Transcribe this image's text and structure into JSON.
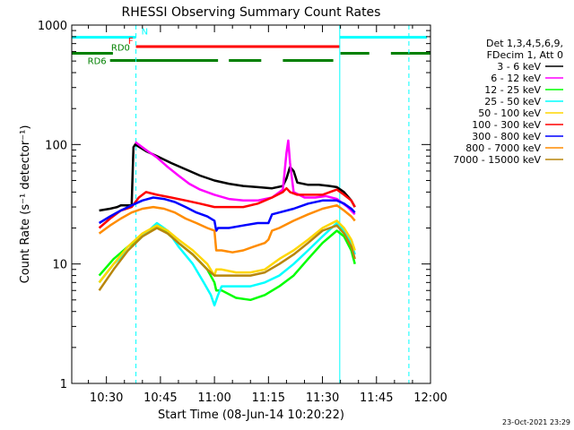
{
  "chart_data": {
    "type": "line",
    "title": "RHESSI Observing Summary Count Rates",
    "xlabel": "Start Time (08-Jun-14 10:20:22)",
    "ylabel": "Count Rate (s⁻¹ detector⁻¹)",
    "xlim_min": [
      20.37,
      120
    ],
    "ylim": [
      1,
      1000
    ],
    "yscale": "log",
    "x_ticks": [
      {
        "m": 30,
        "label": "10:30"
      },
      {
        "m": 45,
        "label": "10:45"
      },
      {
        "m": 60,
        "label": "11:00"
      },
      {
        "m": 75,
        "label": "11:15"
      },
      {
        "m": 90,
        "label": "11:30"
      },
      {
        "m": 105,
        "label": "11:45"
      },
      {
        "m": 120,
        "label": "12:00"
      }
    ],
    "y_ticks": [
      {
        "v": 1,
        "label": "1"
      },
      {
        "v": 10,
        "label": "10"
      },
      {
        "v": 100,
        "label": "100"
      },
      {
        "v": 1000,
        "label": "1000"
      }
    ],
    "legend": {
      "position": "top-right",
      "header": [
        "Det 1,3,4,5,6,9,",
        "FDecim 1, Att 0"
      ]
    },
    "series": [
      {
        "name": "3 - 6 keV",
        "color": "#000000",
        "points": [
          [
            28,
            28
          ],
          [
            31,
            29
          ],
          [
            33,
            30
          ],
          [
            34,
            31
          ],
          [
            37,
            31
          ],
          [
            37.5,
            95
          ],
          [
            38,
            100
          ],
          [
            41,
            88
          ],
          [
            44,
            80
          ],
          [
            48,
            70
          ],
          [
            52,
            62
          ],
          [
            56,
            55
          ],
          [
            60,
            50
          ],
          [
            64,
            47
          ],
          [
            68,
            45
          ],
          [
            72,
            44
          ],
          [
            76,
            43
          ],
          [
            79,
            45
          ],
          [
            80,
            52
          ],
          [
            81,
            65
          ],
          [
            82,
            60
          ],
          [
            83,
            48
          ],
          [
            86,
            46
          ],
          [
            89,
            46
          ],
          [
            92,
            45
          ],
          [
            94,
            44
          ],
          [
            96,
            40
          ],
          [
            98,
            34
          ],
          [
            99,
            30
          ]
        ]
      },
      {
        "name": "6 - 12 keV",
        "color": "#ff00ff",
        "points": [
          [
            38,
            105
          ],
          [
            41,
            90
          ],
          [
            44,
            78
          ],
          [
            47,
            65
          ],
          [
            50,
            55
          ],
          [
            53,
            47
          ],
          [
            56,
            42
          ],
          [
            60,
            38
          ],
          [
            64,
            35
          ],
          [
            68,
            34
          ],
          [
            72,
            34
          ],
          [
            76,
            36
          ],
          [
            79,
            42
          ],
          [
            80,
            85
          ],
          [
            80.5,
            108
          ],
          [
            81,
            70
          ],
          [
            82,
            40
          ],
          [
            85,
            36
          ],
          [
            88,
            36
          ],
          [
            91,
            37
          ],
          [
            94,
            35
          ],
          [
            97,
            30
          ],
          [
            99,
            26
          ]
        ]
      },
      {
        "name": "12 - 25 keV",
        "color": "#00ff00",
        "points": [
          [
            28,
            8
          ],
          [
            32,
            11
          ],
          [
            36,
            14
          ],
          [
            40,
            17
          ],
          [
            44,
            21
          ],
          [
            47,
            18
          ],
          [
            50,
            15
          ],
          [
            54,
            12
          ],
          [
            58,
            9
          ],
          [
            60,
            7
          ],
          [
            60.5,
            6
          ],
          [
            62,
            6
          ],
          [
            66,
            5.2
          ],
          [
            70,
            5
          ],
          [
            74,
            5.5
          ],
          [
            78,
            6.5
          ],
          [
            82,
            8
          ],
          [
            86,
            11
          ],
          [
            90,
            15
          ],
          [
            94,
            19
          ],
          [
            96,
            17
          ],
          [
            98,
            13
          ],
          [
            99,
            10
          ]
        ]
      },
      {
        "name": "25 - 50 keV",
        "color": "#00ffff",
        "points": [
          [
            28,
            7
          ],
          [
            32,
            10
          ],
          [
            36,
            13
          ],
          [
            40,
            17
          ],
          [
            44,
            22
          ],
          [
            47,
            19
          ],
          [
            50,
            14
          ],
          [
            54,
            10
          ],
          [
            57,
            7
          ],
          [
            59,
            5.5
          ],
          [
            60,
            4.5
          ],
          [
            61,
            5.5
          ],
          [
            62,
            6.5
          ],
          [
            66,
            6.5
          ],
          [
            70,
            6.5
          ],
          [
            74,
            7
          ],
          [
            78,
            8
          ],
          [
            82,
            10
          ],
          [
            86,
            13
          ],
          [
            90,
            17
          ],
          [
            94,
            22
          ],
          [
            96,
            19
          ],
          [
            98,
            15
          ],
          [
            99,
            12
          ]
        ]
      },
      {
        "name": "50 - 100 keV",
        "color": "#ffd700",
        "points": [
          [
            28,
            7
          ],
          [
            32,
            10
          ],
          [
            36,
            14
          ],
          [
            40,
            18
          ],
          [
            44,
            21
          ],
          [
            47,
            19
          ],
          [
            50,
            16
          ],
          [
            54,
            13
          ],
          [
            58,
            10
          ],
          [
            60,
            8
          ],
          [
            60.5,
            9
          ],
          [
            62,
            9
          ],
          [
            66,
            8.5
          ],
          [
            70,
            8.5
          ],
          [
            74,
            9
          ],
          [
            78,
            11
          ],
          [
            82,
            13
          ],
          [
            86,
            16
          ],
          [
            90,
            20
          ],
          [
            94,
            23
          ],
          [
            96,
            20
          ],
          [
            98,
            16
          ],
          [
            99,
            13
          ]
        ]
      },
      {
        "name": "100 - 300 keV",
        "color": "#ff0000",
        "points": [
          [
            28,
            20
          ],
          [
            31,
            24
          ],
          [
            34,
            28
          ],
          [
            37,
            30
          ],
          [
            39,
            36
          ],
          [
            41,
            40
          ],
          [
            44,
            38
          ],
          [
            48,
            36
          ],
          [
            52,
            34
          ],
          [
            56,
            32
          ],
          [
            60,
            30
          ],
          [
            64,
            30
          ],
          [
            68,
            30
          ],
          [
            72,
            32
          ],
          [
            76,
            36
          ],
          [
            79,
            40
          ],
          [
            80,
            43
          ],
          [
            81,
            40
          ],
          [
            83,
            38
          ],
          [
            86,
            38
          ],
          [
            90,
            38
          ],
          [
            94,
            42
          ],
          [
            96,
            38
          ],
          [
            98,
            34
          ],
          [
            99,
            30
          ]
        ]
      },
      {
        "name": "300 - 800 keV",
        "color": "#0000ff",
        "points": [
          [
            28,
            22
          ],
          [
            31,
            25
          ],
          [
            34,
            28
          ],
          [
            37,
            31
          ],
          [
            40,
            34
          ],
          [
            43,
            36
          ],
          [
            46,
            35
          ],
          [
            49,
            33
          ],
          [
            52,
            30
          ],
          [
            55,
            27
          ],
          [
            58,
            25
          ],
          [
            60,
            23
          ],
          [
            60.5,
            19
          ],
          [
            61,
            20
          ],
          [
            64,
            20
          ],
          [
            68,
            21
          ],
          [
            72,
            22
          ],
          [
            75,
            22
          ],
          [
            76,
            26
          ],
          [
            78,
            27
          ],
          [
            82,
            29
          ],
          [
            86,
            32
          ],
          [
            90,
            34
          ],
          [
            94,
            34
          ],
          [
            96,
            32
          ],
          [
            98,
            29
          ],
          [
            99,
            27
          ]
        ]
      },
      {
        "name": "800 - 7000 keV",
        "color": "#ff8c00",
        "points": [
          [
            28,
            18
          ],
          [
            31,
            21
          ],
          [
            34,
            24
          ],
          [
            37,
            27
          ],
          [
            40,
            29
          ],
          [
            43,
            30
          ],
          [
            46,
            29
          ],
          [
            49,
            27
          ],
          [
            52,
            24
          ],
          [
            55,
            22
          ],
          [
            58,
            20
          ],
          [
            60,
            19
          ],
          [
            60.5,
            13
          ],
          [
            62,
            13
          ],
          [
            65,
            12.5
          ],
          [
            68,
            13
          ],
          [
            71,
            14
          ],
          [
            74,
            15
          ],
          [
            75,
            16
          ],
          [
            76,
            19
          ],
          [
            78,
            20
          ],
          [
            82,
            23
          ],
          [
            86,
            26
          ],
          [
            90,
            29
          ],
          [
            94,
            31
          ],
          [
            96,
            28
          ],
          [
            98,
            25
          ],
          [
            99,
            23
          ]
        ]
      },
      {
        "name": "7000 - 15000 keV",
        "color": "#b8860b",
        "points": [
          [
            28,
            6
          ],
          [
            32,
            9
          ],
          [
            36,
            13
          ],
          [
            40,
            17
          ],
          [
            44,
            20
          ],
          [
            47,
            18
          ],
          [
            50,
            15
          ],
          [
            54,
            12
          ],
          [
            58,
            9
          ],
          [
            60,
            8
          ],
          [
            62,
            8
          ],
          [
            66,
            8
          ],
          [
            70,
            8
          ],
          [
            74,
            8.5
          ],
          [
            78,
            10
          ],
          [
            82,
            12
          ],
          [
            86,
            15
          ],
          [
            90,
            19
          ],
          [
            94,
            21
          ],
          [
            96,
            18
          ],
          [
            98,
            14
          ],
          [
            99,
            11
          ]
        ]
      }
    ],
    "flags": [
      {
        "label": "N",
        "color": "#00ffff",
        "value": 790,
        "segments": [
          [
            20.37,
            38.2
          ],
          [
            94.8,
            119
          ]
        ]
      },
      {
        "label": "F",
        "color": "#ff0000",
        "value": 660,
        "segments": [
          [
            38.2,
            94.8
          ]
        ]
      },
      {
        "label": "RD0",
        "color": "#008000",
        "value": 580,
        "segments": [
          [
            20.37,
            31.8
          ],
          [
            95,
            103
          ],
          [
            109,
            120
          ]
        ]
      },
      {
        "label": "RD6",
        "color": "#008000",
        "value": 505,
        "segments": [
          [
            31,
            61
          ],
          [
            64,
            73
          ],
          [
            79,
            93
          ]
        ]
      }
    ],
    "vlines": [
      {
        "m": 20.37,
        "color": "#00ffff",
        "style": "solid"
      },
      {
        "m": 38.2,
        "color": "#00ffff",
        "style": "dashed"
      },
      {
        "m": 94.8,
        "color": "#00ffff",
        "style": "solid"
      },
      {
        "m": 114,
        "color": "#00ffff",
        "style": "dashed"
      }
    ]
  },
  "footer": {
    "timestamp": "23-Oct-2021 23:29"
  }
}
